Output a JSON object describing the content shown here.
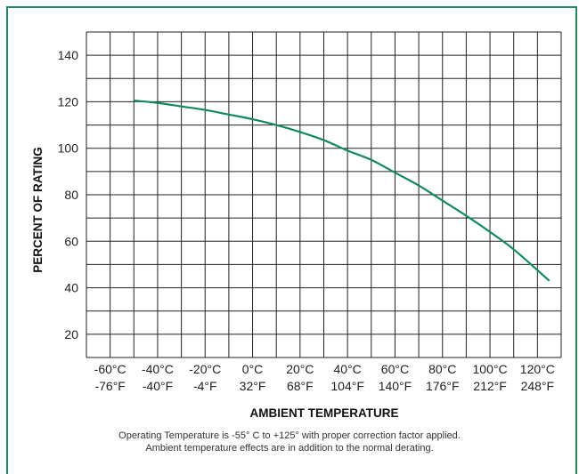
{
  "chart_data": {
    "type": "line",
    "title": "",
    "xlabel": "AMBIENT TEMPERATURE",
    "ylabel": "PERCENT OF RATING",
    "xlim": [
      -70,
      130
    ],
    "ylim": [
      10,
      150
    ],
    "grid": true,
    "yticks": [
      20,
      40,
      60,
      80,
      100,
      120,
      140
    ],
    "xtick_labels": [
      {
        "c": -60,
        "line1": "-60°C",
        "line2": "-76°F"
      },
      {
        "c": -40,
        "line1": "-40°C",
        "line2": "-40°F"
      },
      {
        "c": -20,
        "line1": "-20°C",
        "line2": "-4°F"
      },
      {
        "c": 0,
        "line1": "0°C",
        "line2": "32°F"
      },
      {
        "c": 20,
        "line1": "20°C",
        "line2": "68°F"
      },
      {
        "c": 40,
        "line1": "40°C",
        "line2": "104°F"
      },
      {
        "c": 60,
        "line1": "60°C",
        "line2": "140°F"
      },
      {
        "c": 80,
        "line1": "80°C",
        "line2": "176°F"
      },
      {
        "c": 100,
        "line1": "100°C",
        "line2": "212°F"
      },
      {
        "c": 120,
        "line1": "120°C",
        "line2": "248°F"
      }
    ],
    "series": [
      {
        "color": "#128a5c",
        "x": [
          -50,
          -40,
          -30,
          -20,
          -10,
          0,
          10,
          20,
          30,
          40,
          50,
          60,
          70,
          80,
          90,
          100,
          110,
          125
        ],
        "y": [
          120.5,
          119.5,
          118,
          116.5,
          114.5,
          112.5,
          110,
          107,
          103.5,
          99,
          95,
          89.5,
          84,
          77.5,
          71,
          64,
          56.5,
          43
        ]
      }
    ]
  },
  "caption": {
    "line1": "Operating Temperature is -55° C to +125° with proper correction factor applied.",
    "line2": "Ambient temperature effects are in addition to the normal derating."
  },
  "colors": {
    "frame": "#1f8a5b",
    "curve": "#128a5c",
    "grid": "#222222"
  }
}
